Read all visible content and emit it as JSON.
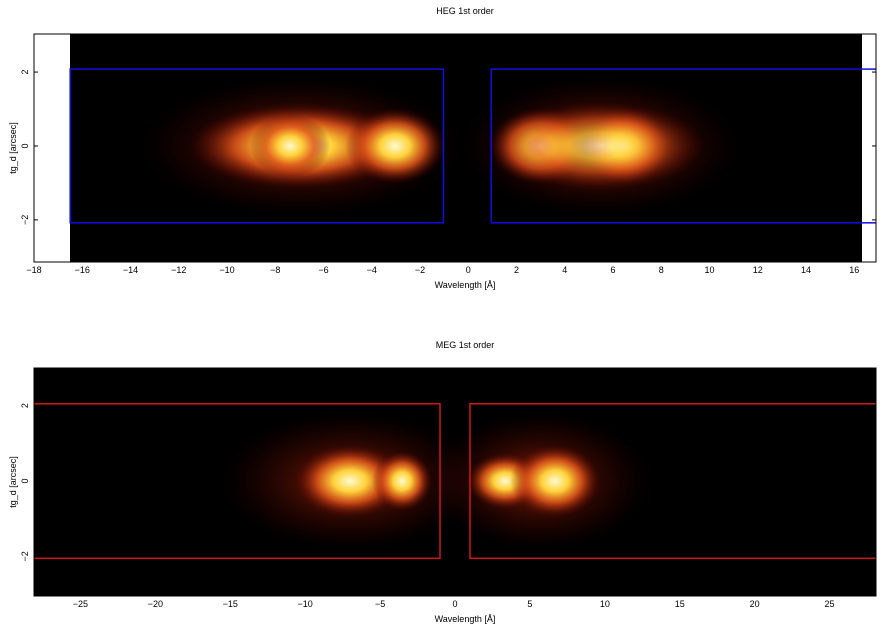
{
  "chart_data": [
    {
      "type": "heatmap",
      "title": "HEG 1st order",
      "x_label": "Wavelength [Å]",
      "y_label": "tg_d [arcsec]",
      "xlim": [
        -18,
        16.9
      ],
      "ylim": [
        -3.14,
        3.03
      ],
      "xticks": [
        {
          "value": -18,
          "label": "−18"
        },
        {
          "value": -16,
          "label": "−16"
        },
        {
          "value": -14,
          "label": "−14"
        },
        {
          "value": -12,
          "label": "−12"
        },
        {
          "value": -10,
          "label": "−10"
        },
        {
          "value": -8,
          "label": "−8"
        },
        {
          "value": -6,
          "label": "−6"
        },
        {
          "value": -4,
          "label": "−4"
        },
        {
          "value": -2,
          "label": "−2"
        },
        0,
        2,
        4,
        6,
        8,
        10,
        12,
        14,
        16
      ],
      "yticks": [
        {
          "value": -2,
          "label": "−2"
        },
        0,
        2
      ],
      "region_color": "#1010e0",
      "regions": [
        {
          "x": [
            -16.5,
            -1.03
          ],
          "y": [
            -2.08,
            2.08
          ]
        },
        {
          "x": [
            0.95,
            17.5
          ],
          "y": [
            -2.08,
            2.08
          ]
        }
      ]
    },
    {
      "type": "heatmap",
      "title": "MEG 1st order",
      "x_label": "Wavelength [Å]",
      "y_label": "tg_d [arcsec]",
      "xlim": [
        -28.1,
        28.1
      ],
      "ylim": [
        -3.05,
        3.0
      ],
      "xticks": [
        {
          "value": -25,
          "label": "−25"
        },
        {
          "value": -20,
          "label": "−20"
        },
        {
          "value": -15,
          "label": "−15"
        },
        {
          "value": -10,
          "label": "−10"
        },
        {
          "value": -5,
          "label": "−5"
        },
        0,
        5,
        10,
        15,
        20,
        25
      ],
      "yticks": [
        {
          "value": -2,
          "label": "−2"
        },
        0,
        2
      ],
      "region_color": "#d01818",
      "regions": [
        {
          "x": [
            -28.5,
            -1.0
          ],
          "y": [
            -2.05,
            2.05
          ]
        },
        {
          "x": [
            1.0,
            28.5
          ],
          "y": [
            -2.05,
            2.05
          ]
        }
      ]
    }
  ]
}
